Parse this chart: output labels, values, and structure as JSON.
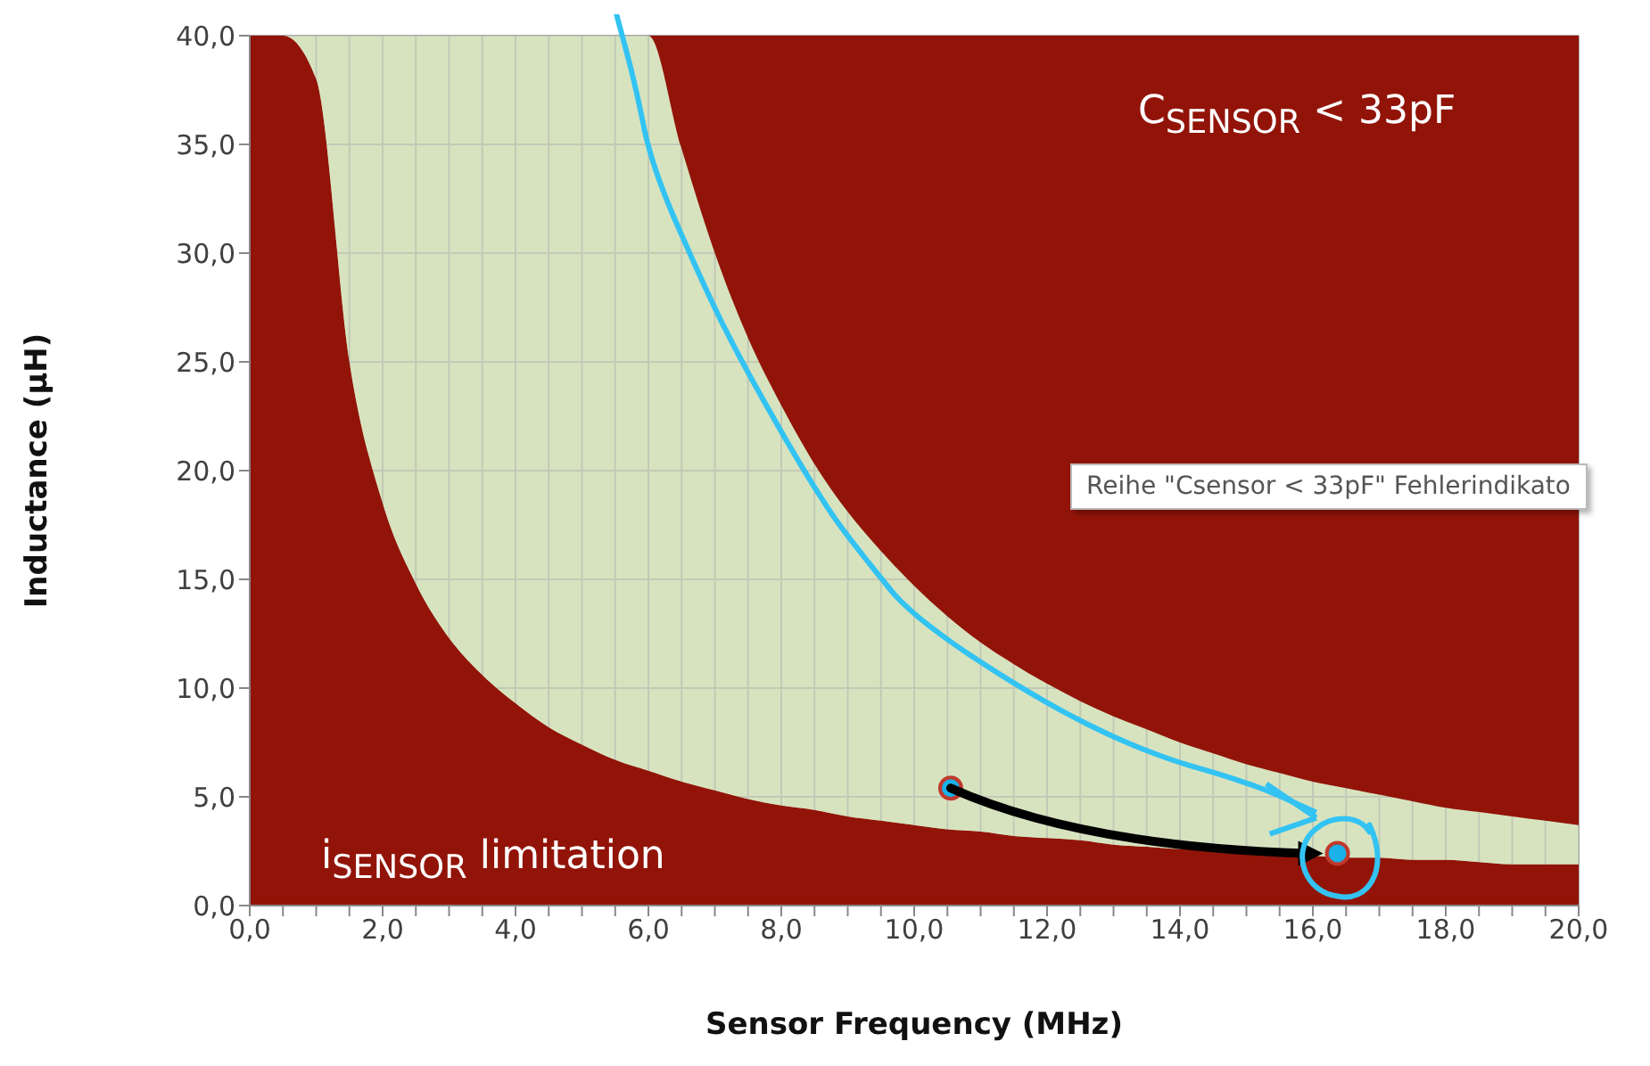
{
  "chart_data": {
    "type": "area",
    "stacked": true,
    "xlabel": "Sensor Frequency (MHz)",
    "ylabel": "Inductance (µH)",
    "x": [
      0,
      0.5,
      1,
      1.5,
      2,
      2.5,
      3,
      3.5,
      4,
      4.5,
      5,
      5.5,
      6,
      6.5,
      7,
      7.5,
      8,
      8.5,
      9,
      9.5,
      10,
      10.5,
      11,
      11.5,
      12,
      12.5,
      13,
      13.5,
      14,
      14.5,
      15,
      15.5,
      16,
      16.5,
      17,
      17.5,
      18,
      18.5,
      19,
      19.5,
      20
    ],
    "series": [
      {
        "color": "#921409",
        "values": [
          40,
          40,
          38,
          25,
          18.5,
          14.8,
          12.3,
          10.6,
          9.3,
          8.2,
          7.4,
          6.7,
          6.2,
          5.7,
          5.3,
          4.9,
          4.6,
          4.4,
          4.1,
          3.9,
          3.7,
          3.5,
          3.4,
          3.2,
          3.1,
          3.0,
          2.8,
          2.7,
          2.6,
          2.6,
          2.5,
          2.4,
          2.3,
          2.2,
          2.2,
          2.1,
          2.1,
          2.0,
          1.9,
          1.9,
          1.9
        ]
      },
      {
        "color": "#d7e3bf",
        "values": [
          0,
          0,
          2,
          15,
          21.5,
          25.2,
          27.7,
          29.4,
          30.7,
          31.8,
          32.6,
          33.3,
          33.8,
          29.1,
          24.7,
          21.2,
          18.4,
          15.9,
          14.0,
          12.4,
          11.0,
          9.8,
          8.7,
          7.9,
          7.1,
          6.4,
          5.9,
          5.4,
          4.9,
          4.4,
          4.0,
          3.7,
          3.4,
          3.2,
          2.9,
          2.7,
          2.4,
          2.3,
          2.2,
          2.0,
          1.8
        ]
      },
      {
        "color": "#921409",
        "values": [
          0,
          0,
          0,
          0,
          0,
          0,
          0,
          0,
          0,
          0,
          0,
          0,
          0,
          5.2,
          10.0,
          13.9,
          17.0,
          19.7,
          21.9,
          23.7,
          25.3,
          26.7,
          27.9,
          28.9,
          29.8,
          30.6,
          31.3,
          31.9,
          32.5,
          33.0,
          33.5,
          33.9,
          34.3,
          34.6,
          34.9,
          35.2,
          35.5,
          35.7,
          35.9,
          36.1,
          36.3
        ]
      },
      {
        "type": "scatter",
        "color": "#1ab0e8",
        "marker": "circle",
        "x": [
          10.55,
          16.37
        ],
        "values": [
          5.4,
          2.4
        ]
      }
    ],
    "xlim": [
      0,
      20
    ],
    "ylim": [
      0,
      40
    ],
    "xticks": [
      {
        "value": 0,
        "label": "0,0"
      },
      {
        "value": 0.5,
        "label": null
      },
      {
        "value": 1,
        "label": null
      },
      {
        "value": 1.5,
        "label": null
      },
      {
        "value": 2,
        "label": "2,0"
      },
      {
        "value": 2.5,
        "label": null
      },
      {
        "value": 3,
        "label": null
      },
      {
        "value": 3.5,
        "label": null
      },
      {
        "value": 4,
        "label": "4,0"
      },
      {
        "value": 4.5,
        "label": null
      },
      {
        "value": 5,
        "label": null
      },
      {
        "value": 5.5,
        "label": null
      },
      {
        "value": 6,
        "label": "6,0"
      },
      {
        "value": 6.5,
        "label": null
      },
      {
        "value": 7,
        "label": null
      },
      {
        "value": 7.5,
        "label": null
      },
      {
        "value": 8,
        "label": "8,0"
      },
      {
        "value": 8.5,
        "label": null
      },
      {
        "value": 9,
        "label": null
      },
      {
        "value": 9.5,
        "label": null
      },
      {
        "value": 10,
        "label": "10,0"
      },
      {
        "value": 10.5,
        "label": null
      },
      {
        "value": 11,
        "label": null
      },
      {
        "value": 11.5,
        "label": null
      },
      {
        "value": 12,
        "label": "12,0"
      },
      {
        "value": 12.5,
        "label": null
      },
      {
        "value": 13,
        "label": null
      },
      {
        "value": 13.5,
        "label": null
      },
      {
        "value": 14,
        "label": "14,0"
      },
      {
        "value": 14.5,
        "label": null
      },
      {
        "value": 15,
        "label": null
      },
      {
        "value": 15.5,
        "label": null
      },
      {
        "value": 16,
        "label": "16,0"
      },
      {
        "value": 16.5,
        "label": null
      },
      {
        "value": 17,
        "label": null
      },
      {
        "value": 17.5,
        "label": null
      },
      {
        "value": 18,
        "label": "18,0"
      },
      {
        "value": 18.5,
        "label": null
      },
      {
        "value": 19,
        "label": null
      },
      {
        "value": 19.5,
        "label": null
      },
      {
        "value": 20,
        "label": "20,0"
      }
    ],
    "yticks": [
      {
        "value": 0,
        "label": "0,0"
      },
      {
        "value": 5,
        "label": "5,0"
      },
      {
        "value": 10,
        "label": "10,0"
      },
      {
        "value": 15,
        "label": "15,0"
      },
      {
        "value": 20,
        "label": "20,0"
      },
      {
        "value": 25,
        "label": "25,0"
      },
      {
        "value": 30,
        "label": "30,0"
      },
      {
        "value": 35,
        "label": "35,0"
      },
      {
        "value": 40,
        "label": "40,0"
      }
    ],
    "grid": true,
    "annotations": [
      "C$_{SENSOR}$ < 33pF",
      "i$_{SENSOR}$ limitation",
      "Reihe \"Csensor < 33pF\" Fehlerindikato"
    ]
  }
}
